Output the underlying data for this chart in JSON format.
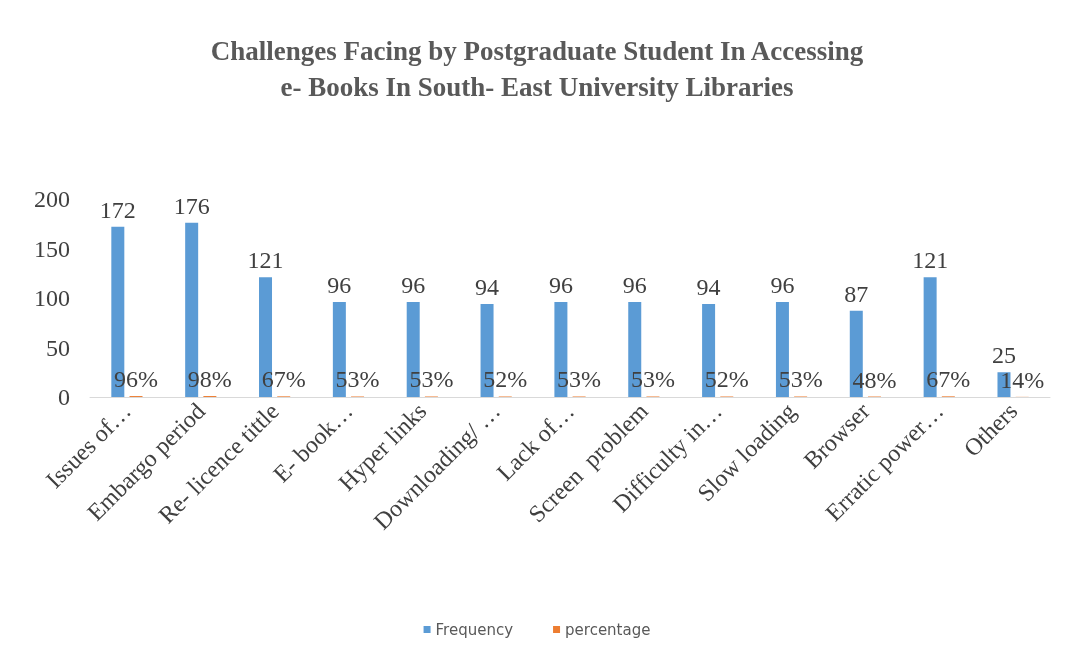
{
  "chart_data": {
    "type": "bar",
    "title": "Challenges Facing by Postgraduate Student In Accessing\ne- Books In South- East University Libraries",
    "categories": [
      "Issues of…",
      "Embargo period",
      "Re- licence tittle",
      "E- book…",
      "Hyper links",
      "Downloading/ …",
      "Lack of…",
      "Screen  problem",
      "Difficulty in…",
      "Slow loading",
      "Browser",
      "Erratic power…",
      "Others"
    ],
    "series": [
      {
        "name": "Frequency",
        "color": "#5b9bd5",
        "values": [
          172,
          176,
          121,
          96,
          96,
          94,
          96,
          96,
          94,
          96,
          87,
          121,
          25
        ],
        "value_labels": [
          "172",
          "176",
          "121",
          "96",
          "96",
          "94",
          "96",
          "96",
          "94",
          "96",
          "87",
          "121",
          "25"
        ]
      },
      {
        "name": "percentage",
        "color": "#ed7d31",
        "values": [
          0.96,
          0.98,
          0.67,
          0.53,
          0.53,
          0.52,
          0.53,
          0.53,
          0.52,
          0.53,
          0.48,
          0.67,
          0.14
        ],
        "value_labels": [
          "96%",
          "98%",
          "67%",
          "53%",
          "53%",
          "52%",
          "53%",
          "53%",
          "52%",
          "53%",
          "48%",
          "67%",
          "14%"
        ]
      }
    ],
    "ylim": [
      0,
      200
    ],
    "yticks": [
      0,
      50,
      100,
      150,
      200
    ],
    "grid": false,
    "legend": "bottom"
  }
}
